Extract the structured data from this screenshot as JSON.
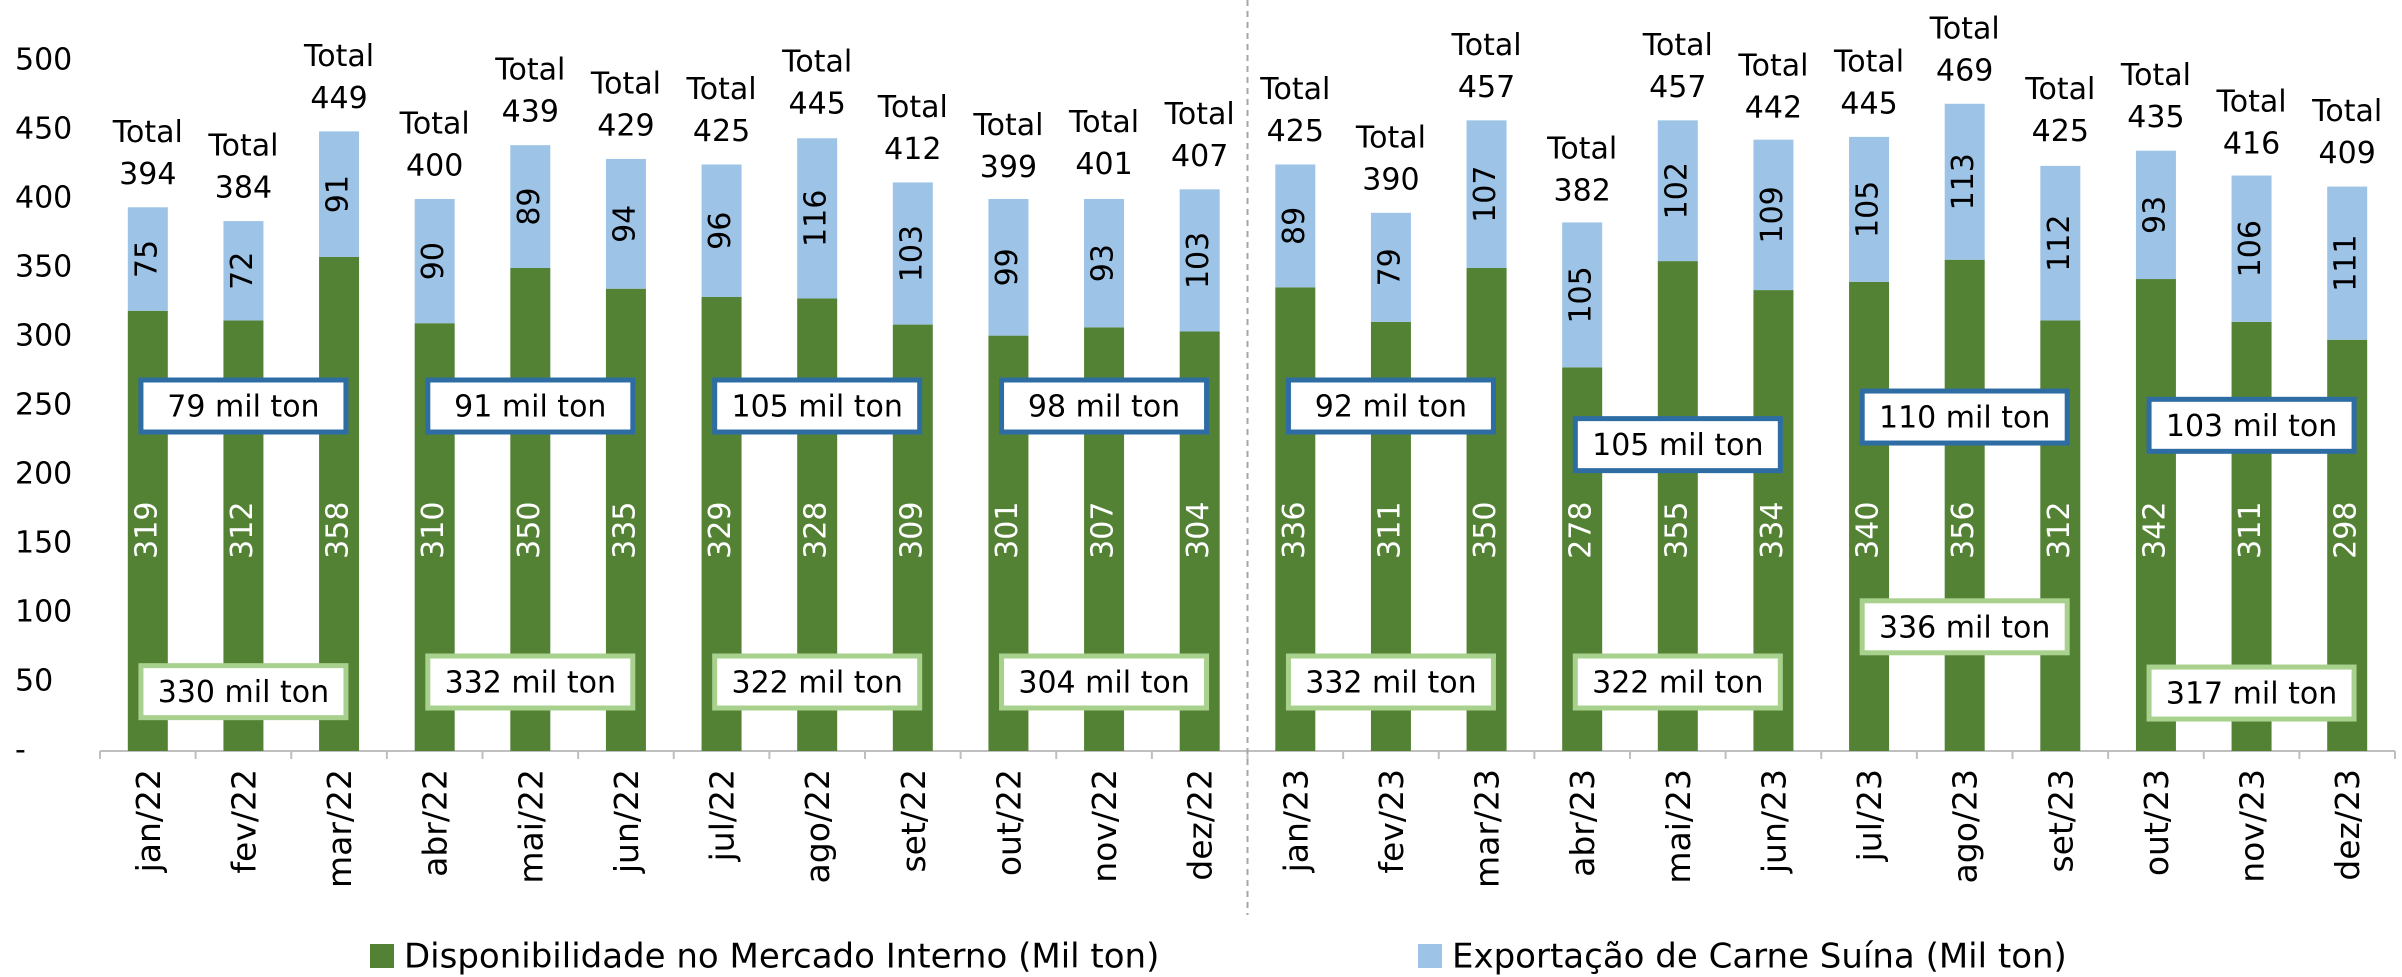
{
  "chart_data": {
    "type": "bar",
    "stacked": true,
    "categories": [
      "jan/22",
      "fev/22",
      "mar/22",
      "abr/22",
      "mai/22",
      "jun/22",
      "jul/22",
      "ago/22",
      "set/22",
      "out/22",
      "nov/22",
      "dez/22",
      "jan/23",
      "fev/23",
      "mar/23",
      "abr/23",
      "mai/23",
      "jun/23",
      "jul/23",
      "ago/23",
      "set/23",
      "out/23",
      "nov/23",
      "dez/23"
    ],
    "series": [
      {
        "name": "Disponibilidade no Mercado Interno (Mil ton)",
        "color": "#548235",
        "values": [
          319,
          312,
          358,
          310,
          350,
          335,
          329,
          328,
          309,
          301,
          307,
          304,
          336,
          311,
          350,
          278,
          355,
          334,
          340,
          356,
          312,
          342,
          311,
          298
        ]
      },
      {
        "name": "Exportação de Carne Suína (Mil ton)",
        "color": "#9dc3e6",
        "values": [
          75,
          72,
          91,
          90,
          89,
          94,
          96,
          116,
          103,
          99,
          93,
          103,
          89,
          79,
          107,
          105,
          102,
          109,
          105,
          113,
          112,
          93,
          106,
          111
        ]
      }
    ],
    "total_label": "Total",
    "totals": [
      394,
      384,
      449,
      400,
      439,
      429,
      425,
      445,
      412,
      399,
      401,
      407,
      425,
      390,
      457,
      382,
      457,
      442,
      445,
      469,
      425,
      435,
      416,
      409
    ],
    "quarter_export_labels": [
      "79 mil ton",
      "91 mil ton",
      "105 mil ton",
      "98 mil ton",
      "92 mil ton",
      "105 mil ton",
      "110 mil ton",
      "103 mil ton"
    ],
    "quarter_domestic_labels": [
      "330 mil ton",
      "332 mil ton",
      "322 mil ton",
      "304 mil ton",
      "332 mil ton",
      "322 mil ton",
      "336 mil ton",
      "317 mil ton"
    ],
    "ylim": [
      0,
      500
    ],
    "yticks": [
      {
        "value": 0,
        "label": "-"
      },
      50,
      100,
      150,
      200,
      250,
      300,
      350,
      400,
      450,
      500
    ],
    "grid": false
  }
}
